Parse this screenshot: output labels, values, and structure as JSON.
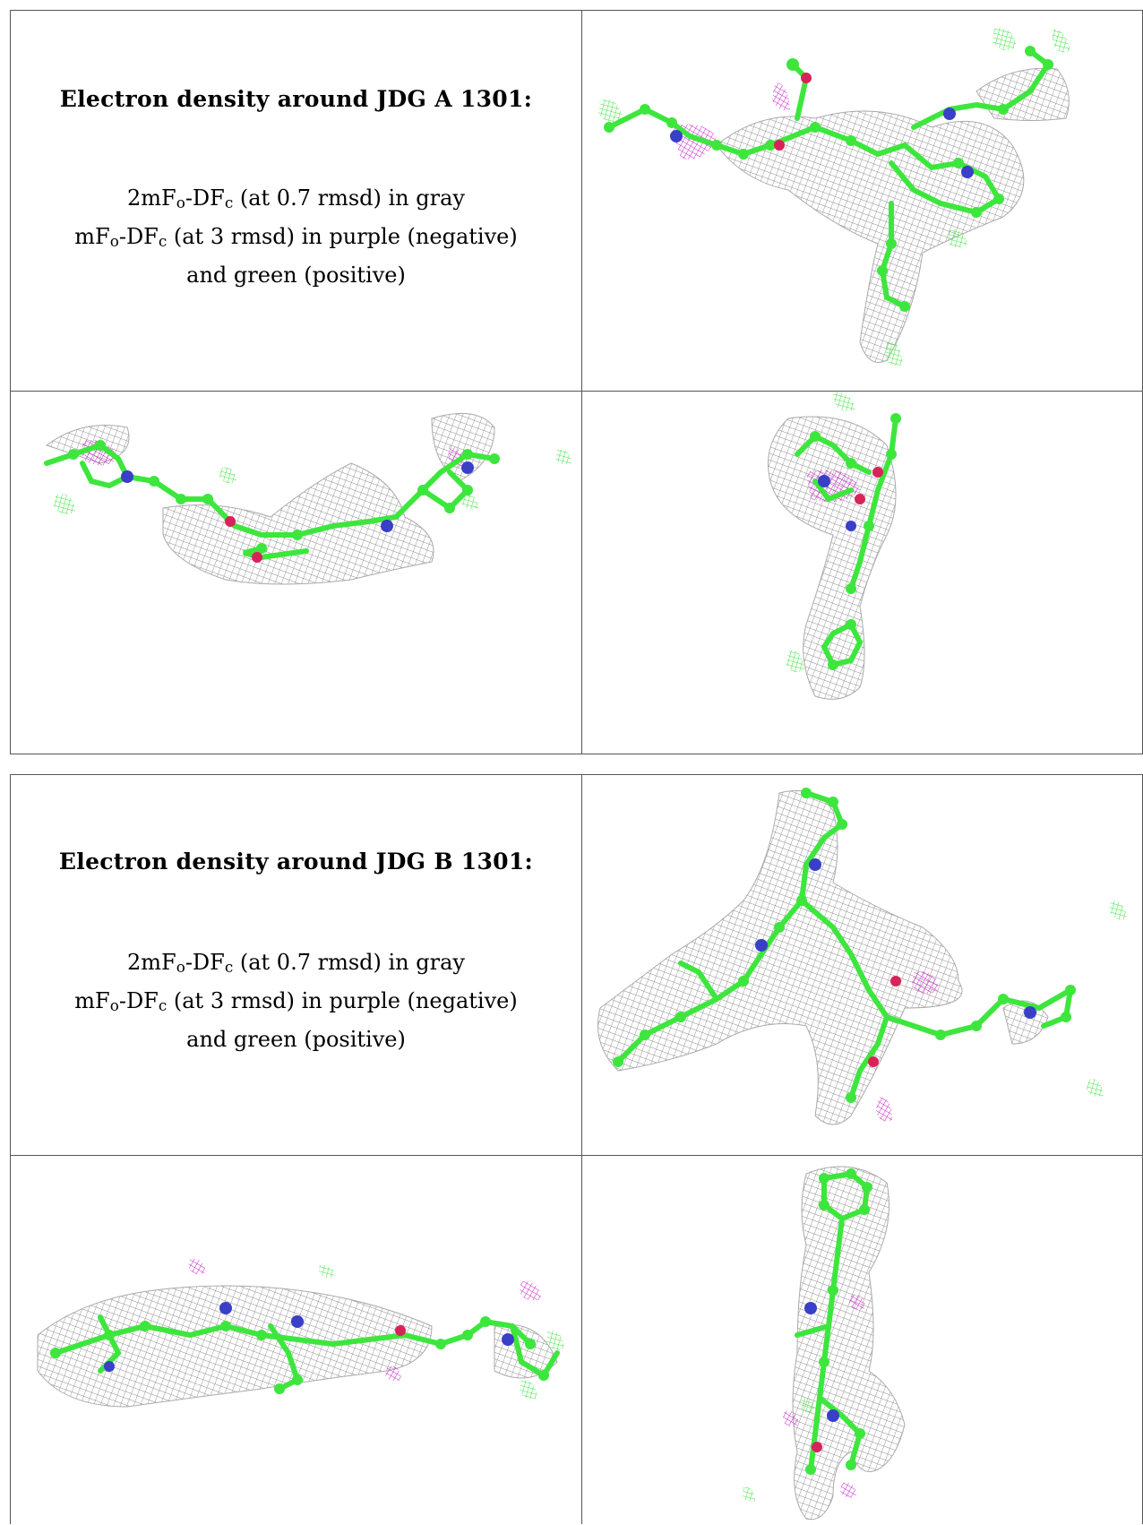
{
  "panels": [
    {
      "title": "Electron density around JDG A 1301:",
      "lines": [
        {
          "pre": "2mF",
          "sub1": "o",
          "mid": "-DF",
          "sub2": "c",
          "post": " (at 0.7 rmsd) in gray"
        },
        {
          "pre": "mF",
          "sub1": "o",
          "mid": "-DF",
          "sub2": "c",
          "post": " (at 3 rmsd) in purple (negative)"
        },
        {
          "pre": "",
          "sub1": "",
          "mid": "",
          "sub2": "",
          "post": "and green (positive)"
        }
      ],
      "images": [
        "ligand-view-top-right",
        "ligand-view-bottom-left",
        "ligand-view-bottom-right"
      ]
    },
    {
      "title": "Electron density around JDG B 1301:",
      "lines": [
        {
          "pre": "2mF",
          "sub1": "o",
          "mid": "-DF",
          "sub2": "c",
          "post": " (at 0.7 rmsd) in gray"
        },
        {
          "pre": "mF",
          "sub1": "o",
          "mid": "-DF",
          "sub2": "c",
          "post": " (at 3 rmsd) in purple (negative)"
        },
        {
          "pre": "",
          "sub1": "",
          "mid": "",
          "sub2": "",
          "post": "and green (positive)"
        }
      ],
      "images": [
        "ligand-view-top-right",
        "ligand-view-bottom-left",
        "ligand-view-bottom-right"
      ]
    }
  ],
  "colors": {
    "mesh_gray": "#9a9a9a",
    "carbon_green": "#3de63d",
    "nitrogen_blue": "#3a3fc8",
    "oxygen_red": "#d8235a",
    "neg_purple": "#cc22cc",
    "pos_green": "#39e639"
  }
}
